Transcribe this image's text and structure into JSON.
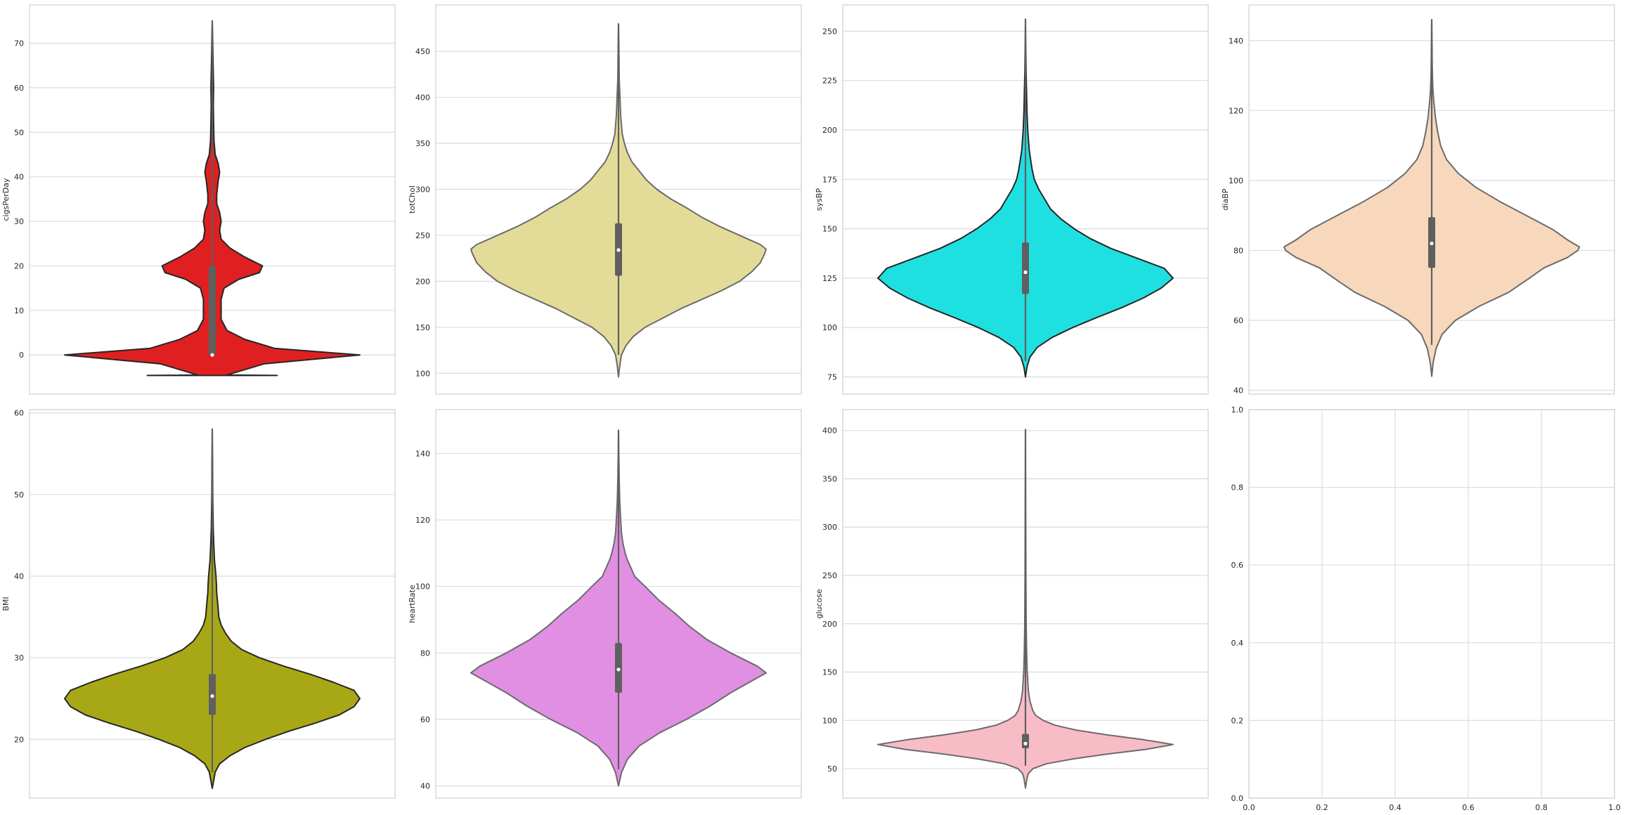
{
  "chart_data": [
    {
      "type": "violin",
      "ylabel": "cigsPerDay",
      "ylim": [
        -8.8,
        78.6
      ],
      "yticks": [
        0,
        10,
        20,
        30,
        40,
        50,
        60,
        70
      ],
      "fill": "#e02020",
      "edge": "#262626",
      "grid": true,
      "box": {
        "q1": 0,
        "median": 0,
        "q3": 20,
        "whisker_low": 0,
        "whisker_high": 50,
        "whisker_line_high": 75
      },
      "density": [
        [
          -4.6,
          0.44
        ],
        [
          -4.5,
          0.1
        ],
        [
          -2.0,
          0.35
        ],
        [
          0,
          1.0
        ],
        [
          1.5,
          0.42
        ],
        [
          3.5,
          0.22
        ],
        [
          5.5,
          0.1
        ],
        [
          8,
          0.06
        ],
        [
          10,
          0.06
        ],
        [
          12.5,
          0.06
        ],
        [
          15,
          0.08
        ],
        [
          17,
          0.18
        ],
        [
          18.5,
          0.32
        ],
        [
          20,
          0.34
        ],
        [
          22,
          0.22
        ],
        [
          24,
          0.12
        ],
        [
          26,
          0.06
        ],
        [
          28,
          0.05
        ],
        [
          30,
          0.06
        ],
        [
          32,
          0.05
        ],
        [
          34,
          0.03
        ],
        [
          36,
          0.03
        ],
        [
          39,
          0.04
        ],
        [
          41,
          0.05
        ],
        [
          43,
          0.04
        ],
        [
          45,
          0.02
        ],
        [
          48,
          0.012
        ],
        [
          52,
          0.009
        ],
        [
          56,
          0.007
        ],
        [
          60,
          0.009
        ],
        [
          64,
          0.006
        ],
        [
          68,
          0.004
        ],
        [
          72,
          0.002
        ],
        [
          75,
          0.0
        ]
      ]
    },
    {
      "type": "violin",
      "ylabel": "totChol",
      "ylim": [
        77.3,
        500.5
      ],
      "yticks": [
        100,
        150,
        200,
        250,
        300,
        350,
        400,
        450
      ],
      "fill": "#e3dc98",
      "edge": "#6b6b6b",
      "grid": true,
      "box": {
        "q1": 206,
        "median": 234,
        "q3": 263,
        "whisker_low": 120,
        "whisker_high": 348,
        "whisker_line_high": 480
      },
      "density": [
        [
          96,
          0.0
        ],
        [
          110,
          0.01
        ],
        [
          120,
          0.02
        ],
        [
          130,
          0.05
        ],
        [
          140,
          0.1
        ],
        [
          150,
          0.18
        ],
        [
          160,
          0.3
        ],
        [
          170,
          0.42
        ],
        [
          180,
          0.56
        ],
        [
          190,
          0.7
        ],
        [
          200,
          0.82
        ],
        [
          210,
          0.9
        ],
        [
          220,
          0.96
        ],
        [
          230,
          0.99
        ],
        [
          235,
          1.0
        ],
        [
          240,
          0.96
        ],
        [
          250,
          0.82
        ],
        [
          260,
          0.68
        ],
        [
          270,
          0.56
        ],
        [
          280,
          0.46
        ],
        [
          290,
          0.35
        ],
        [
          300,
          0.26
        ],
        [
          310,
          0.19
        ],
        [
          320,
          0.14
        ],
        [
          330,
          0.09
        ],
        [
          340,
          0.06
        ],
        [
          350,
          0.04
        ],
        [
          360,
          0.025
        ],
        [
          380,
          0.015
        ],
        [
          400,
          0.01
        ],
        [
          420,
          0.005
        ],
        [
          450,
          0.003
        ],
        [
          480,
          0.0
        ]
      ]
    },
    {
      "type": "violin",
      "ylabel": "sysBP",
      "ylim": [
        66.3,
        263.3
      ],
      "yticks": [
        75,
        100,
        125,
        150,
        175,
        200,
        225,
        250
      ],
      "fill": "#1fe0e0",
      "edge": "#262626",
      "grid": true,
      "box": {
        "q1": 117,
        "median": 128,
        "q3": 143,
        "whisker_low": 83,
        "whisker_high": 182,
        "whisker_line_high": 256
      },
      "density": [
        [
          75,
          0.0
        ],
        [
          80,
          0.01
        ],
        [
          85,
          0.03
        ],
        [
          90,
          0.08
        ],
        [
          95,
          0.18
        ],
        [
          100,
          0.32
        ],
        [
          105,
          0.48
        ],
        [
          110,
          0.65
        ],
        [
          115,
          0.8
        ],
        [
          120,
          0.92
        ],
        [
          125,
          1.0
        ],
        [
          130,
          0.94
        ],
        [
          135,
          0.76
        ],
        [
          140,
          0.58
        ],
        [
          145,
          0.44
        ],
        [
          150,
          0.33
        ],
        [
          155,
          0.24
        ],
        [
          160,
          0.17
        ],
        [
          165,
          0.13
        ],
        [
          170,
          0.09
        ],
        [
          175,
          0.06
        ],
        [
          180,
          0.045
        ],
        [
          185,
          0.035
        ],
        [
          190,
          0.025
        ],
        [
          200,
          0.015
        ],
        [
          210,
          0.01
        ],
        [
          220,
          0.007
        ],
        [
          230,
          0.004
        ],
        [
          240,
          0.002
        ],
        [
          256,
          0.0
        ]
      ]
    },
    {
      "type": "violin",
      "ylabel": "diaBP",
      "ylim": [
        38.9,
        150.2
      ],
      "yticks": [
        40,
        60,
        80,
        100,
        120,
        140
      ],
      "fill": "#f7d8bc",
      "edge": "#6b6b6b",
      "grid": true,
      "box": {
        "q1": 75,
        "median": 82,
        "q3": 89.5,
        "whisker_low": 53,
        "whisker_high": 111,
        "whisker_line_high": 146
      },
      "density": [
        [
          44,
          0.0
        ],
        [
          48,
          0.01
        ],
        [
          52,
          0.03
        ],
        [
          56,
          0.07
        ],
        [
          60,
          0.16
        ],
        [
          64,
          0.32
        ],
        [
          68,
          0.52
        ],
        [
          72,
          0.66
        ],
        [
          75,
          0.76
        ],
        [
          78,
          0.92
        ],
        [
          80,
          0.99
        ],
        [
          81,
          1.0
        ],
        [
          83,
          0.92
        ],
        [
          86,
          0.82
        ],
        [
          90,
          0.64
        ],
        [
          94,
          0.46
        ],
        [
          98,
          0.3
        ],
        [
          102,
          0.18
        ],
        [
          106,
          0.1
        ],
        [
          110,
          0.06
        ],
        [
          114,
          0.04
        ],
        [
          118,
          0.025
        ],
        [
          122,
          0.015
        ],
        [
          126,
          0.008
        ],
        [
          130,
          0.005
        ],
        [
          135,
          0.003
        ],
        [
          140,
          0.002
        ],
        [
          146,
          0.0
        ]
      ]
    },
    {
      "type": "violin",
      "ylabel": "BMI",
      "ylim": [
        12.8,
        60.4
      ],
      "yticks": [
        20,
        30,
        40,
        50,
        60
      ],
      "fill": "#a8a816",
      "edge": "#262626",
      "grid": true,
      "box": {
        "q1": 23,
        "median": 25.3,
        "q3": 28,
        "whisker_low": 16,
        "whisker_high": 35.5,
        "whisker_line_high": 58
      },
      "density": [
        [
          14,
          0.0
        ],
        [
          16,
          0.02
        ],
        [
          17,
          0.05
        ],
        [
          18,
          0.12
        ],
        [
          19,
          0.22
        ],
        [
          20,
          0.36
        ],
        [
          21,
          0.52
        ],
        [
          22,
          0.7
        ],
        [
          23,
          0.86
        ],
        [
          24,
          0.96
        ],
        [
          25,
          1.0
        ],
        [
          26,
          0.96
        ],
        [
          27,
          0.82
        ],
        [
          28,
          0.66
        ],
        [
          29,
          0.48
        ],
        [
          30,
          0.32
        ],
        [
          31,
          0.2
        ],
        [
          32,
          0.13
        ],
        [
          33,
          0.09
        ],
        [
          34,
          0.06
        ],
        [
          35,
          0.045
        ],
        [
          36,
          0.04
        ],
        [
          37,
          0.035
        ],
        [
          38,
          0.03
        ],
        [
          39,
          0.028
        ],
        [
          40,
          0.025
        ],
        [
          42,
          0.015
        ],
        [
          44,
          0.01
        ],
        [
          46,
          0.006
        ],
        [
          50,
          0.003
        ],
        [
          54,
          0.002
        ],
        [
          58,
          0.0
        ]
      ]
    },
    {
      "type": "violin",
      "ylabel": "heartRate",
      "ylim": [
        36.3,
        153.2
      ],
      "yticks": [
        40,
        60,
        80,
        100,
        120,
        140
      ],
      "fill": "#e08fe2",
      "edge": "#6b6b6b",
      "grid": true,
      "box": {
        "q1": 68,
        "median": 75,
        "q3": 83,
        "whisker_low": 45,
        "whisker_high": 105,
        "whisker_line_high": 147
      },
      "density": [
        [
          40,
          0.0
        ],
        [
          44,
          0.02
        ],
        [
          48,
          0.06
        ],
        [
          52,
          0.14
        ],
        [
          56,
          0.28
        ],
        [
          60,
          0.46
        ],
        [
          64,
          0.62
        ],
        [
          68,
          0.76
        ],
        [
          72,
          0.92
        ],
        [
          74,
          1.0
        ],
        [
          76,
          0.94
        ],
        [
          80,
          0.76
        ],
        [
          84,
          0.6
        ],
        [
          88,
          0.48
        ],
        [
          92,
          0.38
        ],
        [
          96,
          0.27
        ],
        [
          100,
          0.18
        ],
        [
          103,
          0.11
        ],
        [
          106,
          0.08
        ],
        [
          108,
          0.06
        ],
        [
          110,
          0.045
        ],
        [
          113,
          0.03
        ],
        [
          116,
          0.02
        ],
        [
          120,
          0.015
        ],
        [
          126,
          0.008
        ],
        [
          132,
          0.005
        ],
        [
          140,
          0.002
        ],
        [
          147,
          0.0
        ]
      ]
    },
    {
      "type": "violin",
      "ylabel": "glucose",
      "ylim": [
        19.5,
        421.6
      ],
      "yticks": [
        50,
        100,
        150,
        200,
        250,
        300,
        350,
        400
      ],
      "fill": "#f8bcc6",
      "edge": "#6b6b6b",
      "grid": true,
      "box": {
        "q1": 71,
        "median": 76,
        "q3": 86,
        "whisker_low": 53,
        "whisker_high": 104,
        "whisker_line_high": 401
      },
      "density": [
        [
          30,
          0.0
        ],
        [
          40,
          0.01
        ],
        [
          45,
          0.02
        ],
        [
          50,
          0.05
        ],
        [
          55,
          0.14
        ],
        [
          60,
          0.32
        ],
        [
          65,
          0.55
        ],
        [
          70,
          0.82
        ],
        [
          75,
          1.0
        ],
        [
          80,
          0.8
        ],
        [
          85,
          0.55
        ],
        [
          90,
          0.34
        ],
        [
          95,
          0.2
        ],
        [
          100,
          0.12
        ],
        [
          105,
          0.07
        ],
        [
          110,
          0.05
        ],
        [
          120,
          0.03
        ],
        [
          130,
          0.02
        ],
        [
          150,
          0.012
        ],
        [
          170,
          0.008
        ],
        [
          200,
          0.005
        ],
        [
          250,
          0.003
        ],
        [
          300,
          0.002
        ],
        [
          350,
          0.001
        ],
        [
          401,
          0.0
        ]
      ]
    },
    {
      "type": "empty",
      "xlim": [
        0,
        1
      ],
      "ylim": [
        0,
        1
      ],
      "xticks": [
        "0.0",
        "0.2",
        "0.4",
        "0.6",
        "0.8",
        "1.0"
      ],
      "yticks": [
        "0.0",
        "0.2",
        "0.4",
        "0.6",
        "0.8",
        "1.0"
      ],
      "grid": true
    }
  ],
  "style": {
    "grid_color": "#dcdcdc",
    "spine_color": "#cfcfcf",
    "box_color": "#5f5f5f",
    "median_color": "#ffffff"
  }
}
